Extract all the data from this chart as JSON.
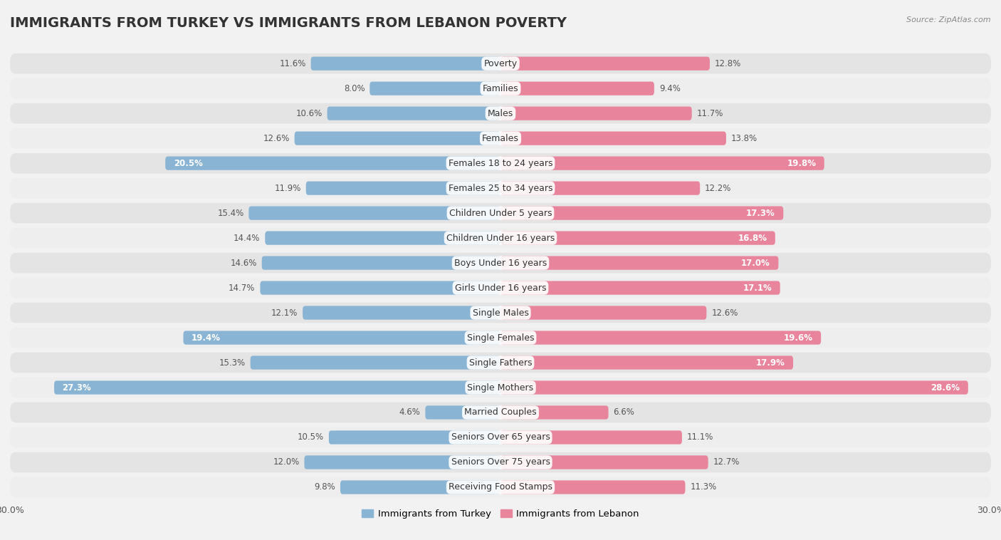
{
  "title": "IMMIGRANTS FROM TURKEY VS IMMIGRANTS FROM LEBANON POVERTY",
  "source": "Source: ZipAtlas.com",
  "categories": [
    "Poverty",
    "Families",
    "Males",
    "Females",
    "Females 18 to 24 years",
    "Females 25 to 34 years",
    "Children Under 5 years",
    "Children Under 16 years",
    "Boys Under 16 years",
    "Girls Under 16 years",
    "Single Males",
    "Single Females",
    "Single Fathers",
    "Single Mothers",
    "Married Couples",
    "Seniors Over 65 years",
    "Seniors Over 75 years",
    "Receiving Food Stamps"
  ],
  "turkey_values": [
    11.6,
    8.0,
    10.6,
    12.6,
    20.5,
    11.9,
    15.4,
    14.4,
    14.6,
    14.7,
    12.1,
    19.4,
    15.3,
    27.3,
    4.6,
    10.5,
    12.0,
    9.8
  ],
  "lebanon_values": [
    12.8,
    9.4,
    11.7,
    13.8,
    19.8,
    12.2,
    17.3,
    16.8,
    17.0,
    17.1,
    12.6,
    19.6,
    17.9,
    28.6,
    6.6,
    11.1,
    12.7,
    11.3
  ],
  "turkey_color": "#8ab4d4",
  "lebanon_color": "#e8849c",
  "turkey_label": "Immigrants from Turkey",
  "lebanon_label": "Immigrants from Lebanon",
  "axis_max": 30.0,
  "background_color": "#f2f2f2",
  "row_light": "#e8e8e8",
  "row_dark": "#d8d8d8",
  "title_fontsize": 14,
  "label_fontsize": 9,
  "value_fontsize": 8.5,
  "bar_height": 0.55,
  "white_text_threshold": 16.0
}
